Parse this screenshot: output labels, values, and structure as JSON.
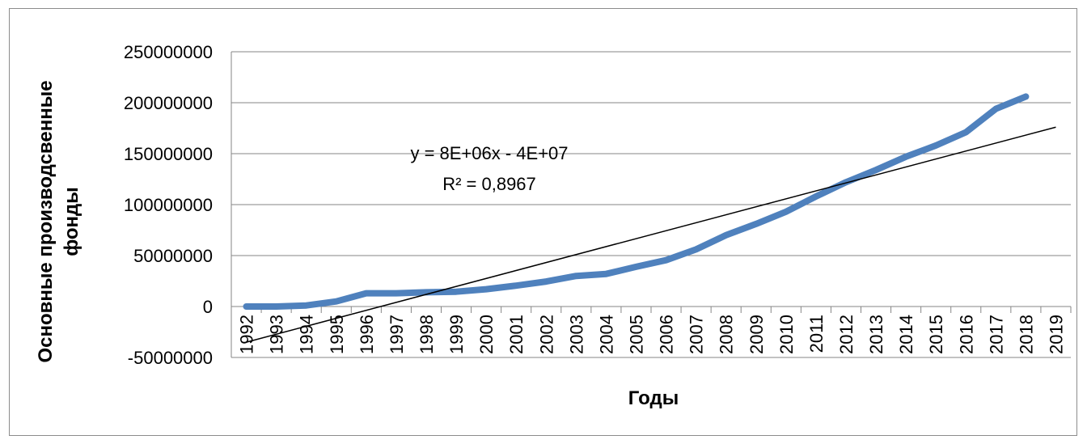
{
  "chart_data": {
    "type": "line",
    "title": "",
    "xlabel": "Годы",
    "ylabel": "Основные производсвенные фонды",
    "categories": [
      "1992",
      "1993",
      "1994",
      "1995",
      "1996",
      "1997",
      "1998",
      "1999",
      "2000",
      "2001",
      "2002",
      "2003",
      "2004",
      "2005",
      "2006",
      "2007",
      "2008",
      "2009",
      "2010",
      "2011",
      "2012",
      "2013",
      "2014",
      "2015",
      "2016",
      "2017",
      "2018",
      "2019"
    ],
    "y_ticks": [
      "250000000",
      "200000000",
      "150000000",
      "100000000",
      "50000000",
      "0",
      "-50000000"
    ],
    "ylim": [
      -50000000,
      250000000
    ],
    "grid": true,
    "legend": "none",
    "series": [
      {
        "color": "#4f81bd",
        "values": [
          0,
          0,
          1000000,
          5000000,
          13000000,
          13000000,
          14000000,
          14500000,
          17000000,
          20500000,
          24500000,
          30000000,
          32000000,
          39000000,
          45500000,
          56000000,
          70000000,
          81000000,
          93000000,
          108000000,
          122000000,
          134000000,
          147000000,
          158000000,
          171000000,
          194000000,
          206000000,
          null
        ]
      }
    ],
    "trendline": {
      "type": "linear",
      "equation": "y = 8E+06x - 4E+07",
      "r2": "R² = 0,8967",
      "color": "#000000",
      "start_value": -35000000,
      "end_value": 176000000
    }
  }
}
